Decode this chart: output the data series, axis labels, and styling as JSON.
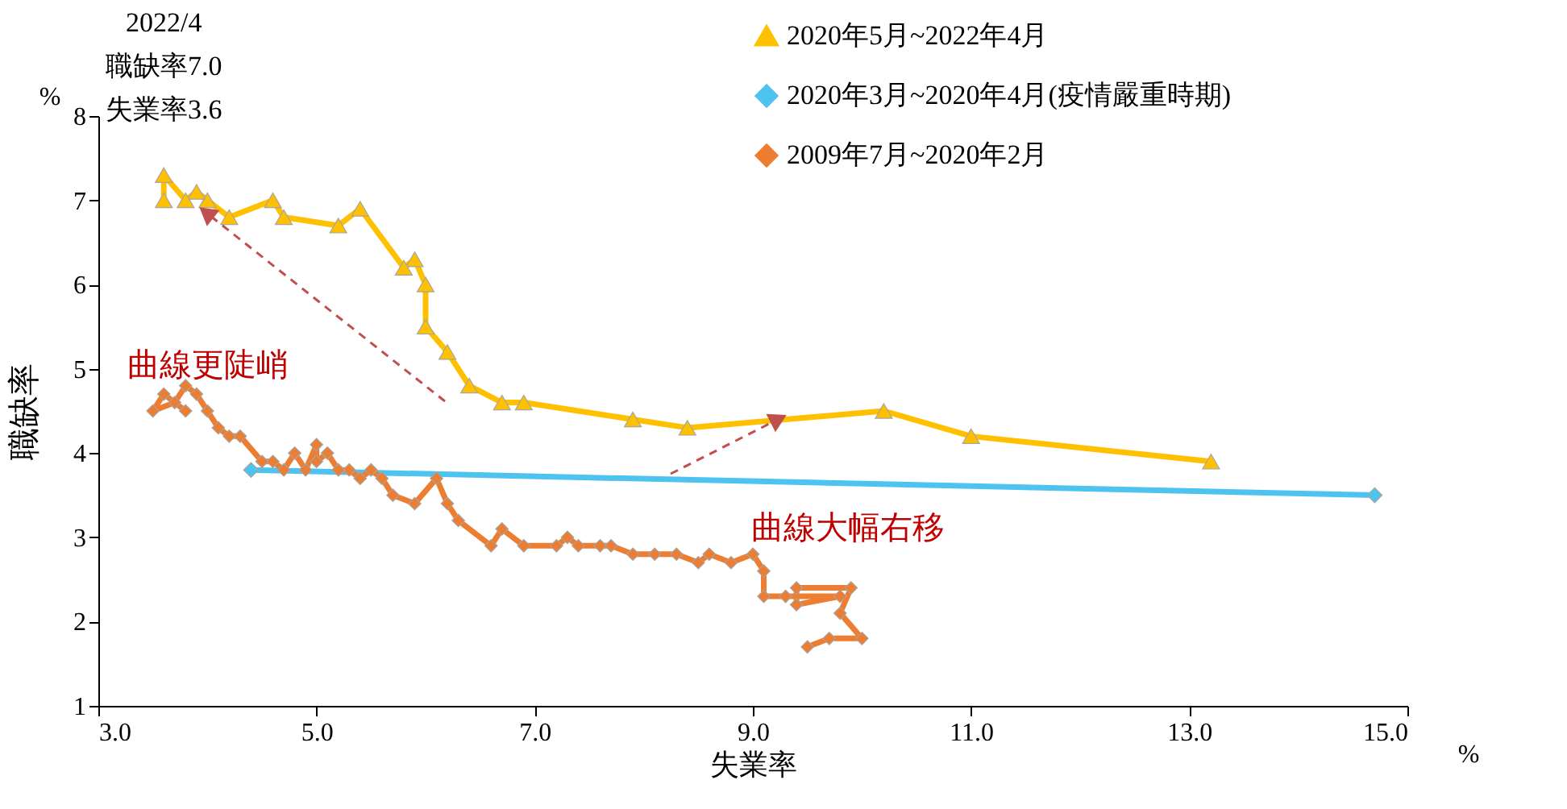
{
  "chart_data": {
    "type": "line",
    "xlabel": "失業率",
    "ylabel": "職缺率",
    "xlim": [
      3,
      15
    ],
    "xticks": [
      {
        "value": 3,
        "label": "3.0"
      },
      {
        "value": 5,
        "label": "5.0"
      },
      {
        "value": 7,
        "label": "7.0"
      },
      {
        "value": 9,
        "label": "9.0"
      },
      {
        "value": 11,
        "label": "11.0"
      },
      {
        "value": 13,
        "label": "13.0"
      },
      {
        "value": 15,
        "label": "15.0"
      }
    ],
    "ylim": [
      1,
      8
    ],
    "yticks": [
      1,
      2,
      3,
      4,
      5,
      6,
      7,
      8
    ],
    "grid": false,
    "legend": "top right",
    "annotations": [
      {
        "text": "2022/4\n職缺率7.0\n失業率3.6",
        "x": 3.6,
        "y": 7.0
      },
      "曲線更陡峭",
      "曲線大幅右移",
      "%",
      "%"
    ],
    "series": [
      {
        "name": "2020年5月~2022年4月",
        "color": "#ffc000",
        "marker": "triangle",
        "x": [
          13.2,
          11.0,
          10.2,
          8.4,
          7.9,
          6.9,
          6.7,
          6.4,
          6.2,
          6.0,
          6.0,
          5.9,
          5.8,
          5.4,
          5.2,
          4.7,
          4.6,
          4.2,
          4.0,
          3.9,
          3.8,
          3.6,
          3.6
        ],
        "values": [
          3.9,
          4.2,
          4.5,
          4.3,
          4.4,
          4.6,
          4.6,
          4.8,
          5.2,
          5.5,
          6.0,
          6.3,
          6.2,
          6.9,
          6.7,
          6.8,
          7.0,
          6.8,
          7.0,
          7.1,
          7.0,
          7.3,
          7.0
        ]
      },
      {
        "name": "2020年3月~2020年4月(疫情嚴重時期)",
        "color": "#4ec3f0",
        "marker": "diamond",
        "x": [
          4.4,
          14.7
        ],
        "values": [
          3.8,
          3.5
        ]
      },
      {
        "name": "2009年7月~2020年2月",
        "color": "#ed7d31",
        "marker": "diamond",
        "x": [
          9.5,
          9.7,
          10.0,
          9.8,
          9.9,
          9.4,
          9.4,
          9.8,
          9.3,
          9.1,
          9.1,
          9.0,
          8.8,
          8.6,
          8.5,
          8.3,
          8.1,
          7.9,
          7.7,
          7.6,
          7.4,
          7.3,
          7.2,
          6.9,
          6.7,
          6.6,
          6.3,
          6.2,
          6.1,
          5.9,
          5.7,
          5.6,
          5.5,
          5.4,
          5.3,
          5.2,
          5.1,
          5.0,
          5.0,
          4.9,
          4.8,
          4.7,
          4.6,
          4.5,
          4.3,
          4.2,
          4.1,
          4.0,
          3.9,
          3.8,
          3.7,
          3.5,
          3.6,
          3.8
        ],
        "values": [
          1.7,
          1.8,
          1.8,
          2.1,
          2.4,
          2.4,
          2.2,
          2.3,
          2.3,
          2.3,
          2.6,
          2.8,
          2.7,
          2.8,
          2.7,
          2.8,
          2.8,
          2.8,
          2.9,
          2.9,
          2.9,
          3.0,
          2.9,
          2.9,
          3.1,
          2.9,
          3.2,
          3.4,
          3.7,
          3.4,
          3.5,
          3.7,
          3.8,
          3.7,
          3.8,
          3.8,
          4.0,
          3.9,
          4.1,
          3.8,
          4.0,
          3.8,
          3.9,
          3.9,
          4.2,
          4.2,
          4.3,
          4.5,
          4.7,
          4.8,
          4.6,
          4.5,
          4.7,
          4.5
        ]
      }
    ]
  }
}
